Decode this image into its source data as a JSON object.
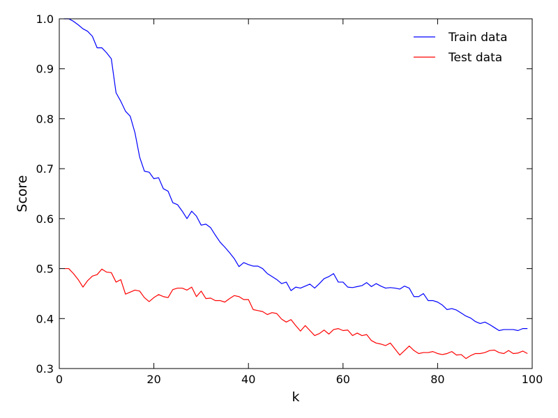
{
  "chart_data": {
    "type": "line",
    "xlabel": "k",
    "ylabel": "Score",
    "xlim": [
      0,
      100
    ],
    "ylim": [
      0.3,
      1.0
    ],
    "xticks": [
      0,
      20,
      40,
      60,
      80,
      100
    ],
    "yticks": [
      0.3,
      0.4,
      0.5,
      0.6,
      0.7,
      0.8,
      0.9,
      1.0
    ],
    "xtick_labels": [
      "0",
      "20",
      "40",
      "60",
      "80",
      "100"
    ],
    "ytick_labels": [
      "0.3",
      "0.4",
      "0.5",
      "0.6",
      "0.7",
      "0.8",
      "0.9",
      "1.0"
    ],
    "grid": false,
    "legend_position": "top-right",
    "x": [
      1,
      2,
      3,
      4,
      5,
      6,
      7,
      8,
      9,
      10,
      11,
      12,
      13,
      14,
      15,
      16,
      17,
      18,
      19,
      20,
      21,
      22,
      23,
      24,
      25,
      26,
      27,
      28,
      29,
      30,
      31,
      32,
      33,
      34,
      35,
      36,
      37,
      38,
      39,
      40,
      41,
      42,
      43,
      44,
      45,
      46,
      47,
      48,
      49,
      50,
      51,
      52,
      53,
      54,
      55,
      56,
      57,
      58,
      59,
      60,
      61,
      62,
      63,
      64,
      65,
      66,
      67,
      68,
      69,
      70,
      71,
      72,
      73,
      74,
      75,
      76,
      77,
      78,
      79,
      80,
      81,
      82,
      83,
      84,
      85,
      86,
      87,
      88,
      89,
      90,
      91,
      92,
      93,
      94,
      95,
      96,
      97,
      98,
      99
    ],
    "series": [
      {
        "name": "Train data",
        "color": "#0000ff",
        "values": [
          1.0,
          1.0,
          0.995,
          0.988,
          0.98,
          0.975,
          0.965,
          0.942,
          0.942,
          0.932,
          0.92,
          0.852,
          0.835,
          0.815,
          0.805,
          0.772,
          0.723,
          0.695,
          0.693,
          0.68,
          0.682,
          0.66,
          0.655,
          0.632,
          0.628,
          0.615,
          0.6,
          0.615,
          0.605,
          0.587,
          0.589,
          0.582,
          0.567,
          0.553,
          0.543,
          0.532,
          0.52,
          0.504,
          0.512,
          0.508,
          0.505,
          0.505,
          0.5,
          0.49,
          0.484,
          0.478,
          0.47,
          0.473,
          0.456,
          0.463,
          0.461,
          0.465,
          0.469,
          0.461,
          0.47,
          0.48,
          0.484,
          0.49,
          0.473,
          0.473,
          0.463,
          0.462,
          0.464,
          0.466,
          0.472,
          0.464,
          0.47,
          0.465,
          0.461,
          0.462,
          0.461,
          0.459,
          0.465,
          0.461,
          0.444,
          0.444,
          0.45,
          0.436,
          0.436,
          0.433,
          0.427,
          0.418,
          0.42,
          0.417,
          0.411,
          0.405,
          0.401,
          0.394,
          0.39,
          0.393,
          0.388,
          0.382,
          0.376,
          0.378,
          0.378,
          0.378,
          0.376,
          0.38,
          0.38
        ]
      },
      {
        "name": "Test data",
        "color": "#ff0000",
        "values": [
          0.5,
          0.5,
          0.49,
          0.478,
          0.463,
          0.476,
          0.485,
          0.488,
          0.499,
          0.493,
          0.492,
          0.473,
          0.478,
          0.449,
          0.453,
          0.457,
          0.455,
          0.442,
          0.434,
          0.442,
          0.448,
          0.444,
          0.442,
          0.458,
          0.461,
          0.461,
          0.457,
          0.463,
          0.444,
          0.455,
          0.44,
          0.441,
          0.436,
          0.436,
          0.433,
          0.44,
          0.446,
          0.444,
          0.438,
          0.438,
          0.418,
          0.416,
          0.414,
          0.408,
          0.412,
          0.41,
          0.399,
          0.393,
          0.398,
          0.386,
          0.375,
          0.386,
          0.376,
          0.366,
          0.37,
          0.377,
          0.369,
          0.378,
          0.38,
          0.376,
          0.377,
          0.366,
          0.371,
          0.366,
          0.368,
          0.356,
          0.351,
          0.349,
          0.346,
          0.351,
          0.339,
          0.327,
          0.336,
          0.345,
          0.336,
          0.33,
          0.332,
          0.332,
          0.334,
          0.33,
          0.328,
          0.33,
          0.334,
          0.327,
          0.328,
          0.32,
          0.326,
          0.33,
          0.33,
          0.332,
          0.336,
          0.337,
          0.332,
          0.33,
          0.336,
          0.33,
          0.331,
          0.335,
          0.33
        ]
      }
    ]
  }
}
